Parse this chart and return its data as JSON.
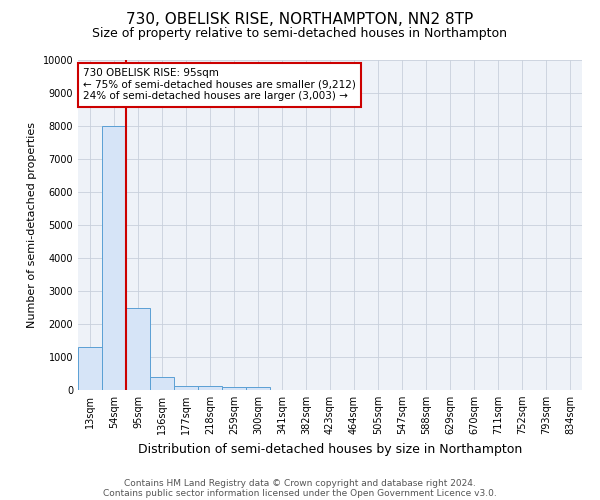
{
  "title": "730, OBELISK RISE, NORTHAMPTON, NN2 8TP",
  "subtitle": "Size of property relative to semi-detached houses in Northampton",
  "xlabel": "Distribution of semi-detached houses by size in Northampton",
  "ylabel": "Number of semi-detached properties",
  "footnote1": "Contains HM Land Registry data © Crown copyright and database right 2024.",
  "footnote2": "Contains public sector information licensed under the Open Government Licence v3.0.",
  "annotation_line1": "730 OBELISK RISE: 95sqm",
  "annotation_line2": "← 75% of semi-detached houses are smaller (9,212)",
  "annotation_line3": "24% of semi-detached houses are larger (3,003) →",
  "categories": [
    "13sqm",
    "54sqm",
    "95sqm",
    "136sqm",
    "177sqm",
    "218sqm",
    "259sqm",
    "300sqm",
    "341sqm",
    "382sqm",
    "423sqm",
    "464sqm",
    "505sqm",
    "547sqm",
    "588sqm",
    "629sqm",
    "670sqm",
    "711sqm",
    "752sqm",
    "793sqm",
    "834sqm"
  ],
  "values": [
    1300,
    8000,
    2500,
    380,
    130,
    110,
    100,
    100,
    0,
    0,
    0,
    0,
    0,
    0,
    0,
    0,
    0,
    0,
    0,
    0,
    0
  ],
  "bar_color": "#d6e4f7",
  "bar_edge_color": "#5a9fd4",
  "red_line_x": 1.5,
  "red_line_color": "#cc0000",
  "ylim": [
    0,
    10000
  ],
  "yticks": [
    0,
    1000,
    2000,
    3000,
    4000,
    5000,
    6000,
    7000,
    8000,
    9000,
    10000
  ],
  "background_color": "#ffffff",
  "plot_background": "#eef2f8",
  "grid_color": "#c8d0dc",
  "title_fontsize": 11,
  "subtitle_fontsize": 9,
  "axis_label_fontsize": 8,
  "tick_fontsize": 7,
  "annotation_box_color": "#ffffff",
  "annotation_box_edge": "#cc0000",
  "annotation_fontsize": 7.5
}
